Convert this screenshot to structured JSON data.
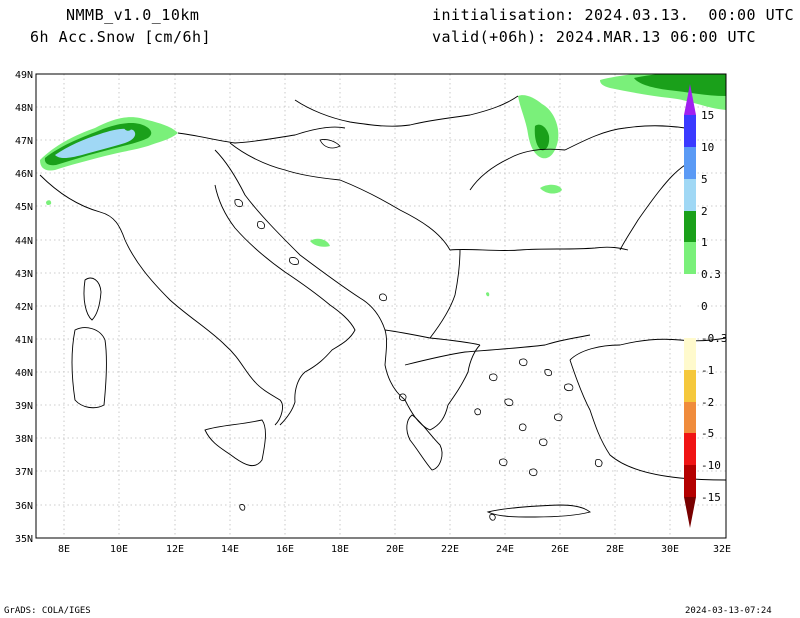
{
  "header": {
    "model": "NMMB_v1.0_10km",
    "field": "6h Acc.Snow [cm/6h]",
    "init": "initialisation: 2024.03.13.  00:00 UTC",
    "valid": "valid(+06h): 2024.MAR.13 06:00 UTC"
  },
  "axes": {
    "lat_labels": [
      "49N",
      "48N",
      "47N",
      "46N",
      "45N",
      "44N",
      "43N",
      "42N",
      "41N",
      "40N",
      "39N",
      "38N",
      "37N",
      "36N",
      "35N"
    ],
    "lon_labels": [
      "8E",
      "10E",
      "12E",
      "14E",
      "16E",
      "18E",
      "20E",
      "22E",
      "24E",
      "26E",
      "28E",
      "30E",
      "32E"
    ]
  },
  "colorbar": {
    "labels": [
      "15",
      "10",
      "5",
      "2",
      "1",
      "0.3",
      "0",
      "-0.3",
      "-1",
      "-2",
      "-5",
      "-10",
      "-15"
    ],
    "colors": {
      "top_arrow": "#a020f0",
      "c10_15": "#3a3aff",
      "c5_10": "#5a9af5",
      "c2_5": "#a0d8f5",
      "c1_2": "#1aa01a",
      "c03_1": "#7af07a",
      "neg03_1": "#fffacd",
      "neg1_2": "#f5c83c",
      "neg2_5": "#f08c3c",
      "neg5_10": "#f01414",
      "neg10_15": "#b40000",
      "bottom_arrow": "#780000"
    }
  },
  "footer": {
    "left": "GrADS: COLA/IGES",
    "right": "2024-03-13-07:24"
  }
}
